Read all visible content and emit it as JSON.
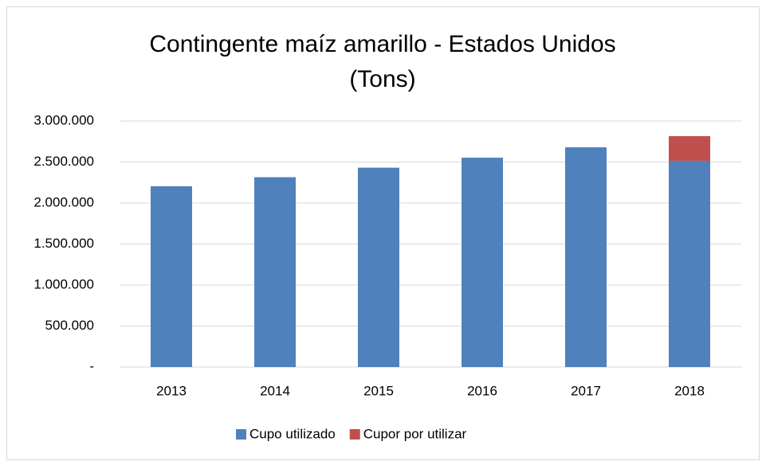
{
  "chart_data": {
    "type": "stacked-bar",
    "title": "Contingente maíz amarillo - Estados Unidos (Tons)",
    "categories": [
      "2013",
      "2014",
      "2015",
      "2016",
      "2017",
      "2018"
    ],
    "series": [
      {
        "name": "Cupo utilizado",
        "color": "#4f81bd",
        "values": [
          2205000,
          2315000,
          2431000,
          2553000,
          2680000,
          2515000
        ]
      },
      {
        "name": "Cupor por utilizar",
        "color": "#c0504d",
        "values": [
          null,
          null,
          null,
          null,
          null,
          301000
        ]
      }
    ],
    "ylim": [
      0,
      3000000
    ],
    "yticks": [
      {
        "value": 0,
        "label": "-"
      },
      {
        "value": 500000,
        "label": "500.000"
      },
      {
        "value": 1000000,
        "label": "1.000.000"
      },
      {
        "value": 1500000,
        "label": "1.500.000"
      },
      {
        "value": 2000000,
        "label": "2.000.000"
      },
      {
        "value": 2500000,
        "label": "2.500.000"
      },
      {
        "value": 3000000,
        "label": "3.000.000"
      }
    ],
    "grid": true,
    "legend": "bottom"
  }
}
